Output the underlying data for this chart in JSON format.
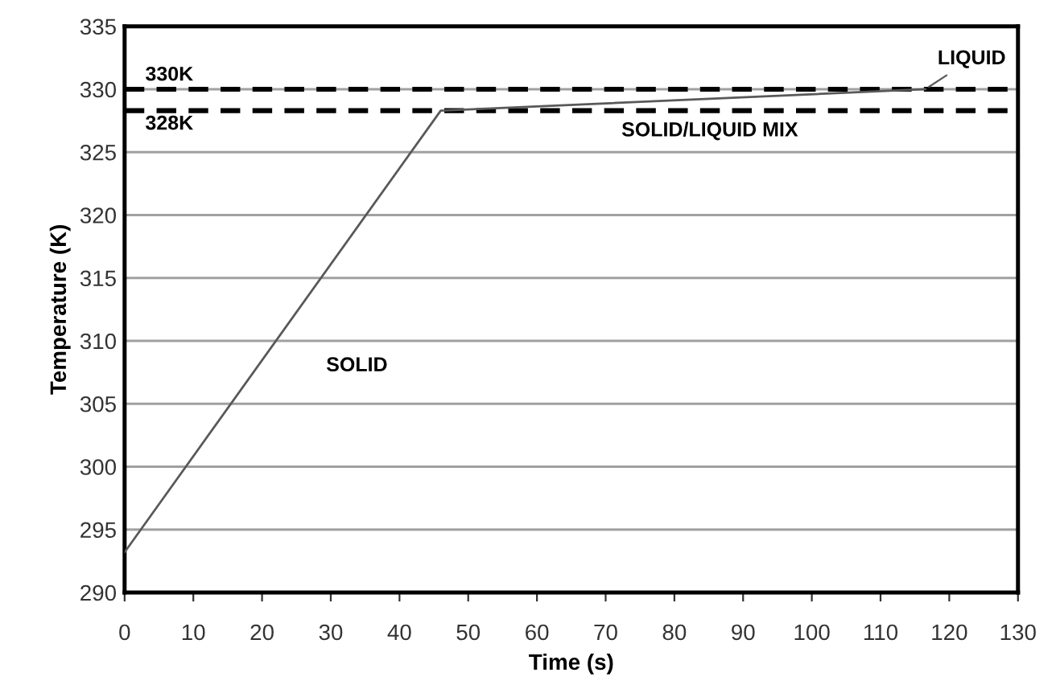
{
  "chart_data": {
    "type": "line",
    "xlabel": "Time (s)",
    "ylabel": "Temperature (K)",
    "x": [
      0,
      46,
      116.5
    ],
    "series": [
      {
        "color": "#595959",
        "values": [
          293.2,
          328.3,
          330
        ]
      }
    ],
    "xlim": [
      0,
      130
    ],
    "xticks": [
      0,
      10,
      20,
      30,
      40,
      50,
      60,
      70,
      80,
      90,
      100,
      110,
      120,
      130
    ],
    "ylim": [
      290,
      335
    ],
    "yticks": [
      290,
      295,
      300,
      305,
      310,
      315,
      320,
      325,
      330,
      335
    ],
    "grid": "y",
    "marker": "none",
    "line_style": "solid",
    "ref_lines": [
      {
        "axis": "y",
        "value": 330,
        "label": "330K",
        "color": "#000000",
        "line_style": "dashed"
      },
      {
        "axis": "y",
        "value": 328.3,
        "label": "328K",
        "color": "#000000",
        "line_style": "dashed"
      }
    ],
    "annotations": [
      {
        "text": "LIQUID",
        "x": 116.5,
        "y": 330
      },
      "SOLID",
      "SOLID/LIQUID MIX"
    ]
  }
}
